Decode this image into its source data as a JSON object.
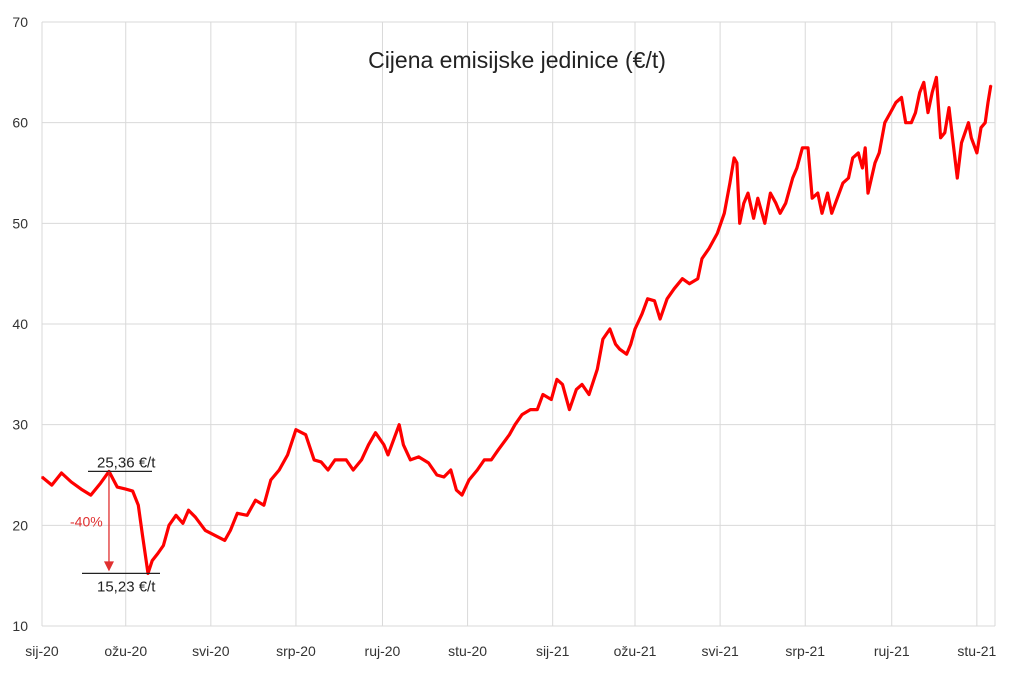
{
  "chart_data": {
    "type": "line",
    "title": "Cijena emisijske jedinice (€/t)",
    "xlabel": "",
    "ylabel": "",
    "ylim": [
      10,
      70
    ],
    "yticks": [
      10,
      20,
      30,
      40,
      50,
      60,
      70
    ],
    "xlim": [
      "2020-01-01",
      "2021-11-14"
    ],
    "xticks": [
      {
        "date": "2020-01-01",
        "label": "sij-20"
      },
      {
        "date": "2020-03-01",
        "label": "ožu-20"
      },
      {
        "date": "2020-05-01",
        "label": "svi-20"
      },
      {
        "date": "2020-07-01",
        "label": "srp-20"
      },
      {
        "date": "2020-09-01",
        "label": "ruj-20"
      },
      {
        "date": "2020-11-01",
        "label": "stu-20"
      },
      {
        "date": "2021-01-01",
        "label": "sij-21"
      },
      {
        "date": "2021-03-01",
        "label": "ožu-21"
      },
      {
        "date": "2021-05-01",
        "label": "svi-21"
      },
      {
        "date": "2021-07-01",
        "label": "srp-21"
      },
      {
        "date": "2021-09-01",
        "label": "ruj-21"
      },
      {
        "date": "2021-11-01",
        "label": "stu-21"
      }
    ],
    "grid": true,
    "line_color": "#ff0000",
    "annotations": {
      "high_label": "25,36 €/t",
      "high_value": 25.36,
      "high_date": "2020-02-18",
      "low_label": "15,23 €/t",
      "low_value": 15.23,
      "low_date": "2020-03-17",
      "change_label": "-40%",
      "change_color": "#e03030"
    },
    "series": [
      {
        "points": [
          [
            "2020-01-01",
            24.8
          ],
          [
            "2020-01-08",
            24.0
          ],
          [
            "2020-01-15",
            25.2
          ],
          [
            "2020-01-22",
            24.3
          ],
          [
            "2020-01-29",
            23.6
          ],
          [
            "2020-02-05",
            23.0
          ],
          [
            "2020-02-12",
            24.2
          ],
          [
            "2020-02-18",
            25.36
          ],
          [
            "2020-02-24",
            23.8
          ],
          [
            "2020-03-01",
            23.6
          ],
          [
            "2020-03-06",
            23.4
          ],
          [
            "2020-03-10",
            22.0
          ],
          [
            "2020-03-13",
            19.0
          ],
          [
            "2020-03-17",
            15.23
          ],
          [
            "2020-03-20",
            16.5
          ],
          [
            "2020-03-24",
            17.2
          ],
          [
            "2020-03-28",
            18.0
          ],
          [
            "2020-04-01",
            20.0
          ],
          [
            "2020-04-06",
            21.0
          ],
          [
            "2020-04-11",
            20.2
          ],
          [
            "2020-04-15",
            21.5
          ],
          [
            "2020-04-20",
            20.8
          ],
          [
            "2020-04-27",
            19.5
          ],
          [
            "2020-05-04",
            19.0
          ],
          [
            "2020-05-11",
            18.5
          ],
          [
            "2020-05-15",
            19.5
          ],
          [
            "2020-05-20",
            21.2
          ],
          [
            "2020-05-27",
            21.0
          ],
          [
            "2020-06-02",
            22.5
          ],
          [
            "2020-06-08",
            22.0
          ],
          [
            "2020-06-13",
            24.5
          ],
          [
            "2020-06-19",
            25.5
          ],
          [
            "2020-06-25",
            27.0
          ],
          [
            "2020-07-01",
            29.5
          ],
          [
            "2020-07-08",
            29.0
          ],
          [
            "2020-07-14",
            26.5
          ],
          [
            "2020-07-19",
            26.3
          ],
          [
            "2020-07-24",
            25.5
          ],
          [
            "2020-07-29",
            26.5
          ],
          [
            "2020-08-06",
            26.5
          ],
          [
            "2020-08-11",
            25.5
          ],
          [
            "2020-08-17",
            26.5
          ],
          [
            "2020-08-22",
            28.0
          ],
          [
            "2020-08-27",
            29.2
          ],
          [
            "2020-09-02",
            28.0
          ],
          [
            "2020-09-05",
            27.0
          ],
          [
            "2020-09-09",
            28.5
          ],
          [
            "2020-09-13",
            30.0
          ],
          [
            "2020-09-16",
            28.0
          ],
          [
            "2020-09-21",
            26.5
          ],
          [
            "2020-09-27",
            26.8
          ],
          [
            "2020-10-04",
            26.2
          ],
          [
            "2020-10-10",
            25.0
          ],
          [
            "2020-10-15",
            24.8
          ],
          [
            "2020-10-20",
            25.5
          ],
          [
            "2020-10-24",
            23.5
          ],
          [
            "2020-10-28",
            23.0
          ],
          [
            "2020-11-02",
            24.5
          ],
          [
            "2020-11-08",
            25.5
          ],
          [
            "2020-11-13",
            26.5
          ],
          [
            "2020-11-18",
            26.5
          ],
          [
            "2020-11-23",
            27.5
          ],
          [
            "2020-12-01",
            29.0
          ],
          [
            "2020-12-05",
            30.0
          ],
          [
            "2020-12-10",
            31.0
          ],
          [
            "2020-12-16",
            31.5
          ],
          [
            "2020-12-21",
            31.5
          ],
          [
            "2020-12-25",
            33.0
          ],
          [
            "2020-12-31",
            32.5
          ],
          [
            "2021-01-04",
            34.5
          ],
          [
            "2021-01-08",
            34.0
          ],
          [
            "2021-01-13",
            31.5
          ],
          [
            "2021-01-18",
            33.5
          ],
          [
            "2021-01-22",
            34.0
          ],
          [
            "2021-01-27",
            33.0
          ],
          [
            "2021-02-02",
            35.5
          ],
          [
            "2021-02-06",
            38.5
          ],
          [
            "2021-02-11",
            39.5
          ],
          [
            "2021-02-15",
            38.0
          ],
          [
            "2021-02-18",
            37.5
          ],
          [
            "2021-02-23",
            37.0
          ],
          [
            "2021-02-26",
            38.0
          ],
          [
            "2021-03-01",
            39.5
          ],
          [
            "2021-03-06",
            41.0
          ],
          [
            "2021-03-10",
            42.5
          ],
          [
            "2021-03-15",
            42.3
          ],
          [
            "2021-03-19",
            40.5
          ],
          [
            "2021-03-24",
            42.5
          ],
          [
            "2021-03-29",
            43.5
          ],
          [
            "2021-04-04",
            44.5
          ],
          [
            "2021-04-09",
            44.0
          ],
          [
            "2021-04-15",
            44.5
          ],
          [
            "2021-04-18",
            46.5
          ],
          [
            "2021-04-23",
            47.5
          ],
          [
            "2021-04-29",
            49.0
          ],
          [
            "2021-05-04",
            51.0
          ],
          [
            "2021-05-08",
            54.0
          ],
          [
            "2021-05-11",
            56.5
          ],
          [
            "2021-05-13",
            56.0
          ],
          [
            "2021-05-15",
            50.0
          ],
          [
            "2021-05-18",
            52.0
          ],
          [
            "2021-05-21",
            53.0
          ],
          [
            "2021-05-25",
            50.5
          ],
          [
            "2021-05-28",
            52.5
          ],
          [
            "2021-06-02",
            50.0
          ],
          [
            "2021-06-06",
            53.0
          ],
          [
            "2021-06-10",
            52.0
          ],
          [
            "2021-06-13",
            51.0
          ],
          [
            "2021-06-17",
            52.0
          ],
          [
            "2021-06-22",
            54.5
          ],
          [
            "2021-06-25",
            55.5
          ],
          [
            "2021-06-29",
            57.5
          ],
          [
            "2021-07-03",
            57.5
          ],
          [
            "2021-07-06",
            52.5
          ],
          [
            "2021-07-10",
            53.0
          ],
          [
            "2021-07-13",
            51.0
          ],
          [
            "2021-07-17",
            53.0
          ],
          [
            "2021-07-20",
            51.0
          ],
          [
            "2021-07-24",
            52.5
          ],
          [
            "2021-07-28",
            54.0
          ],
          [
            "2021-08-01",
            54.5
          ],
          [
            "2021-08-04",
            56.5
          ],
          [
            "2021-08-08",
            57.0
          ],
          [
            "2021-08-11",
            55.5
          ],
          [
            "2021-08-13",
            57.5
          ],
          [
            "2021-08-15",
            53.0
          ],
          [
            "2021-08-20",
            56.0
          ],
          [
            "2021-08-23",
            57.0
          ],
          [
            "2021-08-27",
            60.0
          ],
          [
            "2021-08-31",
            61.0
          ],
          [
            "2021-09-04",
            62.0
          ],
          [
            "2021-09-08",
            62.5
          ],
          [
            "2021-09-11",
            60.0
          ],
          [
            "2021-09-15",
            60.0
          ],
          [
            "2021-09-18",
            61.0
          ],
          [
            "2021-09-21",
            63.0
          ],
          [
            "2021-09-24",
            64.0
          ],
          [
            "2021-09-27",
            61.0
          ],
          [
            "2021-09-30",
            63.0
          ],
          [
            "2021-10-03",
            64.5
          ],
          [
            "2021-10-06",
            58.5
          ],
          [
            "2021-10-09",
            59.0
          ],
          [
            "2021-10-12",
            61.5
          ],
          [
            "2021-10-15",
            58.0
          ],
          [
            "2021-10-18",
            54.5
          ],
          [
            "2021-10-21",
            58.0
          ],
          [
            "2021-10-26",
            60.0
          ],
          [
            "2021-10-28",
            58.5
          ],
          [
            "2021-11-01",
            57.0
          ],
          [
            "2021-11-04",
            59.5
          ],
          [
            "2021-11-07",
            60.0
          ],
          [
            "2021-11-09",
            62.0
          ],
          [
            "2021-11-11",
            63.7
          ]
        ]
      }
    ]
  }
}
